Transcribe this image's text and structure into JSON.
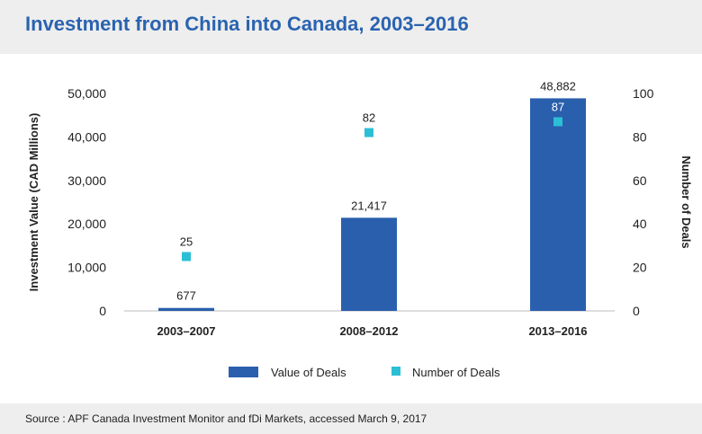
{
  "header": {
    "title": "Investment from China into Canada, 2003–2016"
  },
  "footer": {
    "source": "Source : APF Canada Investment Monitor and fDi Markets, accessed March 9, 2017"
  },
  "colors": {
    "bar": "#2a5fad",
    "marker": "#2bbfd6",
    "text": "#222222",
    "header_bg": "#eeeeee",
    "title": "#2a63b0"
  },
  "chart_data": {
    "type": "bar",
    "categories": [
      "2003–2007",
      "2008–2012",
      "2013–2016"
    ],
    "series": [
      {
        "name": "Value of Deals",
        "type": "bar",
        "axis": "left",
        "values": [
          677,
          21417,
          48882
        ],
        "labels": [
          "677",
          "21,417",
          "48,882"
        ]
      },
      {
        "name": "Number of Deals",
        "type": "scatter",
        "axis": "right",
        "values": [
          25,
          82,
          87
        ],
        "labels": [
          "25",
          "82",
          "87"
        ]
      }
    ],
    "ylabel": "Investment Value (CAD Millions)",
    "y2label": "Number of Deals",
    "ylim": [
      0,
      50000
    ],
    "y2lim": [
      0,
      100
    ],
    "yticks": [
      "0",
      "10,000",
      "20,000",
      "30,000",
      "40,000",
      "50,000"
    ],
    "y2ticks": [
      "0",
      "20",
      "40",
      "60",
      "80",
      "100"
    ],
    "grid": false,
    "legend_position": "bottom"
  }
}
